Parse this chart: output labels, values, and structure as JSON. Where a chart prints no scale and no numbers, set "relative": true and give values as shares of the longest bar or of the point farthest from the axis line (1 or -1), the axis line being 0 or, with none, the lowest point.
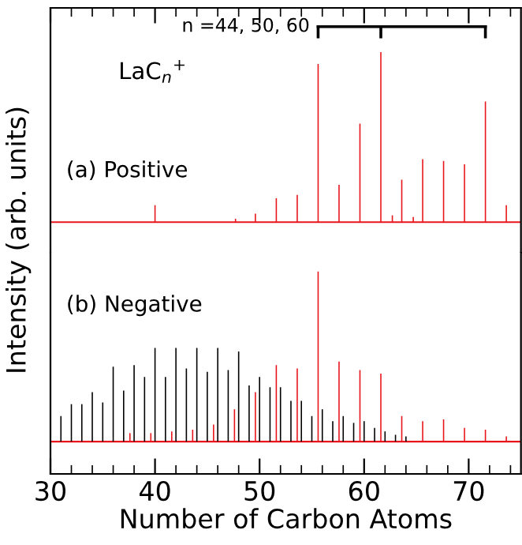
{
  "chart_data": [
    {
      "type": "bar",
      "relative": true,
      "ylabel": "Intensity (arb. units)",
      "tick_labels": false,
      "xlim": [
        30,
        75
      ],
      "xticks": [
        30,
        40,
        50,
        60,
        70
      ],
      "annotations": [
        "n =44, 50, 60",
        "LaC$_{n}$$^{+}$",
        "(a) Positive"
      ],
      "series": [
        {
          "color": "#e8151b",
          "x": [
            40.0,
            47.7,
            49.6,
            51.6,
            53.6,
            55.6,
            57.6,
            59.6,
            61.6,
            62.7,
            63.6,
            64.7,
            65.6,
            67.6,
            69.6,
            71.6,
            73.6
          ],
          "values": [
            0.1,
            0.02,
            0.05,
            0.14,
            0.16,
            0.93,
            0.22,
            0.58,
            1.0,
            0.04,
            0.25,
            0.03,
            0.37,
            0.36,
            0.34,
            0.71,
            0.1
          ]
        }
      ]
    },
    {
      "type": "bar",
      "relative": true,
      "xlabel": "Number of Carbon Atoms",
      "tick_labels": "x",
      "xlim": [
        30,
        75
      ],
      "xticks": [
        30,
        40,
        50,
        60,
        70
      ],
      "annotations": [
        "(b) Negative"
      ],
      "series": [
        {
          "color": "#000000",
          "x": [
            31,
            32,
            33,
            34,
            35,
            36,
            37,
            38,
            39,
            40,
            41,
            42,
            43,
            44,
            45,
            46,
            47,
            48,
            49,
            50,
            51,
            52,
            53,
            54,
            55,
            56,
            57,
            58,
            59,
            60,
            61,
            62,
            63,
            64
          ],
          "values": [
            0.15,
            0.22,
            0.22,
            0.29,
            0.23,
            0.44,
            0.3,
            0.45,
            0.38,
            0.55,
            0.38,
            0.55,
            0.43,
            0.55,
            0.41,
            0.55,
            0.42,
            0.53,
            0.33,
            0.38,
            0.32,
            0.32,
            0.24,
            0.24,
            0.15,
            0.19,
            0.12,
            0.15,
            0.11,
            0.12,
            0.08,
            0.06,
            0.04,
            0.03
          ]
        },
        {
          "color": "#e8151b",
          "x": [
            37.6,
            39.6,
            41.6,
            43.6,
            45.6,
            47.6,
            49.6,
            51.6,
            53.6,
            55.6,
            57.6,
            59.6,
            61.6,
            63.6,
            65.6,
            67.6,
            69.6,
            71.6,
            73.6
          ],
          "values": [
            0.05,
            0.05,
            0.06,
            0.07,
            0.1,
            0.19,
            0.29,
            0.45,
            0.43,
            1.0,
            0.47,
            0.42,
            0.4,
            0.15,
            0.12,
            0.13,
            0.08,
            0.07,
            0.03
          ]
        }
      ]
    }
  ]
}
